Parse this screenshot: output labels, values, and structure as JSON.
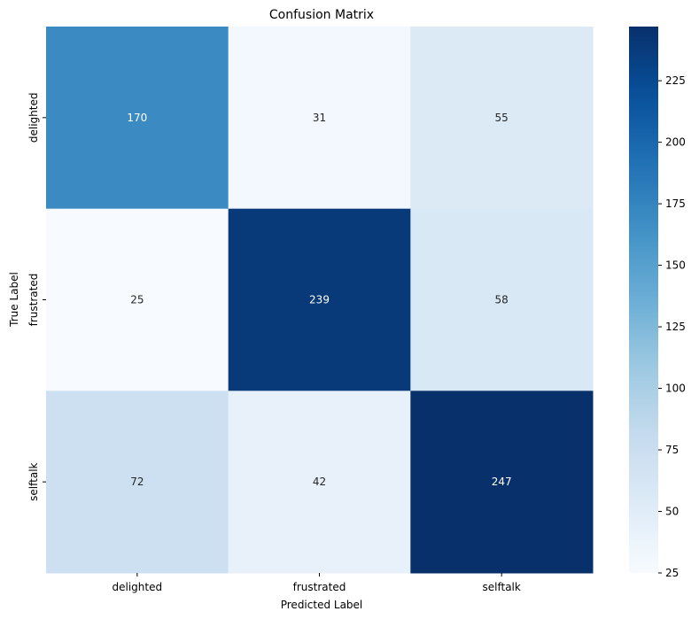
{
  "chart_data": {
    "type": "heatmap",
    "title": "Confusion Matrix",
    "xlabel": "Predicted Label",
    "ylabel": "True Label",
    "x_categories": [
      "delighted",
      "frustrated",
      "selftalk"
    ],
    "y_categories": [
      "delighted",
      "frustrated",
      "selftalk"
    ],
    "values": [
      [
        170,
        31,
        55
      ],
      [
        25,
        239,
        58
      ],
      [
        72,
        42,
        247
      ]
    ],
    "colormap": "Blues",
    "colorbar": {
      "min": 25,
      "max": 247,
      "ticks": [
        25,
        50,
        75,
        100,
        125,
        150,
        175,
        200,
        225
      ]
    },
    "annotation_dark_color": "#262626",
    "annotation_light_color": "#ffffff",
    "grid": false
  }
}
